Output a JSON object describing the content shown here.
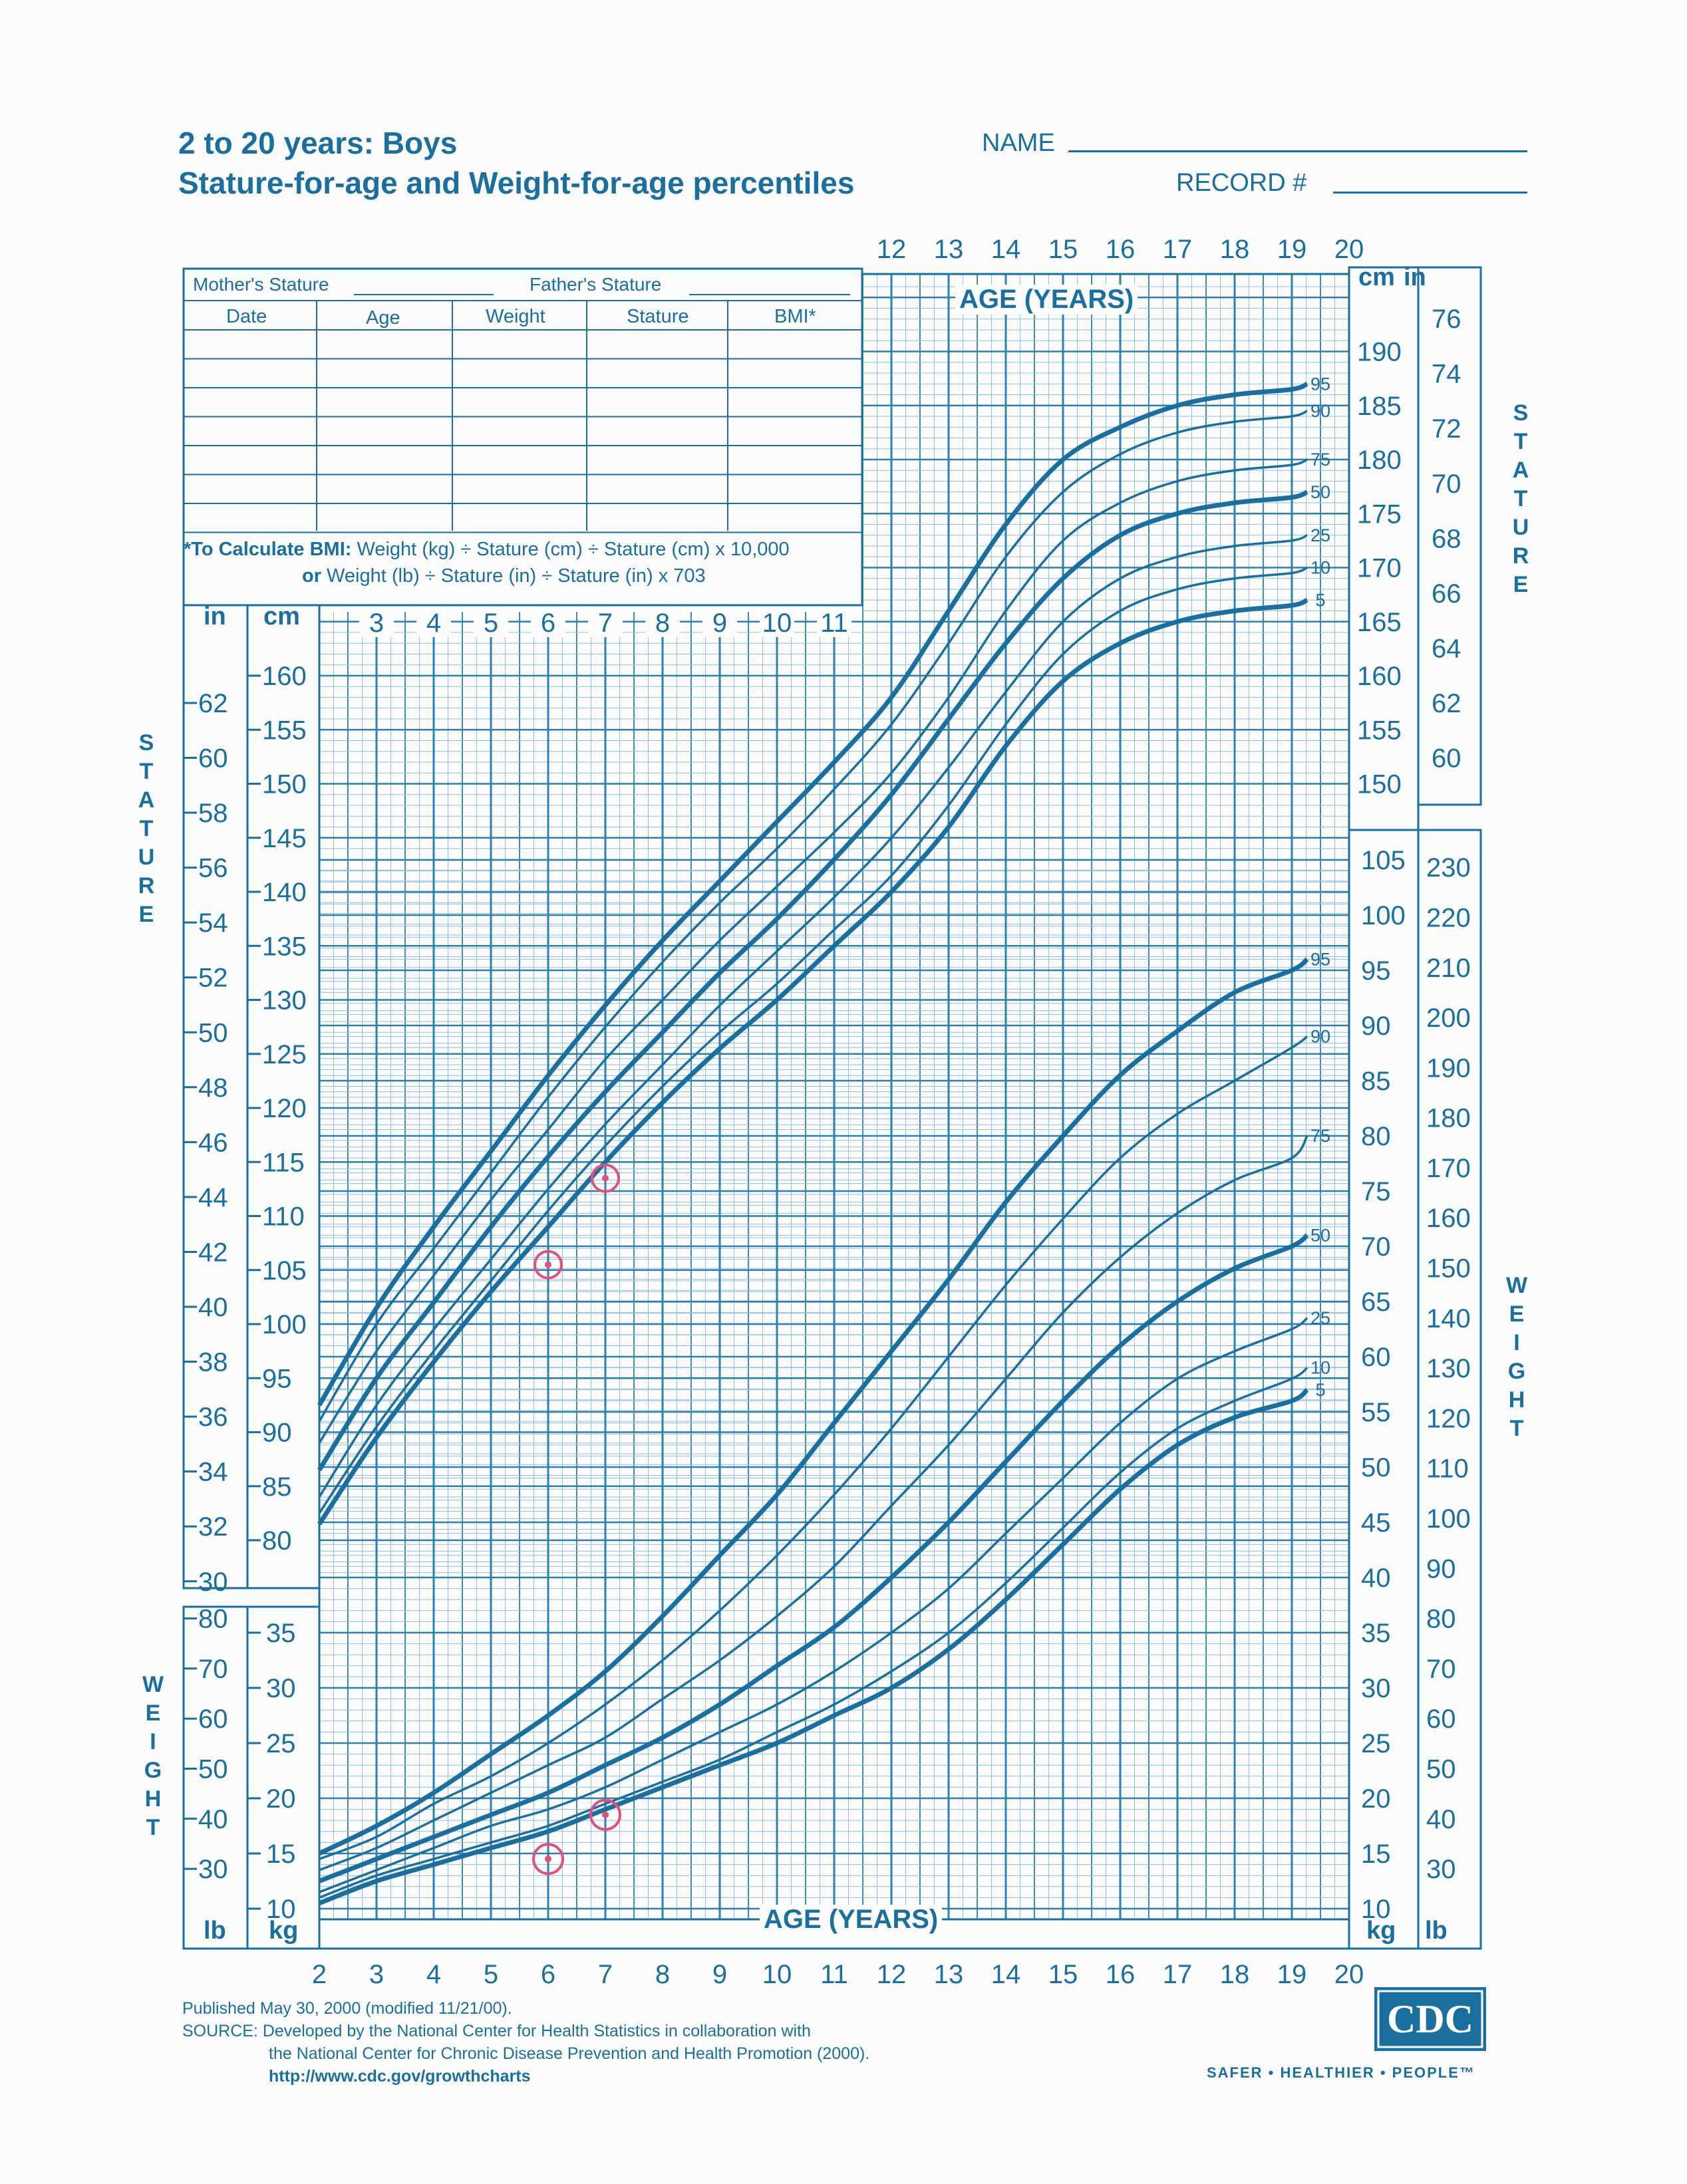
{
  "header": {
    "title_line1": "2 to 20 years: Boys",
    "title_line2": "Stature-for-age and Weight-for-age percentiles",
    "name_label": "NAME",
    "record_label": "RECORD #"
  },
  "form": {
    "mothers_stature": "Mother's Stature",
    "fathers_stature": "Father's Stature",
    "columns": [
      "Date",
      "Age",
      "Weight",
      "Stature",
      "BMI*"
    ],
    "bmi_note_line1_bold": "*To Calculate BMI:",
    "bmi_note_line1": " Weight (kg) ÷ Stature (cm) ÷ Stature (cm) x 10,000",
    "bmi_note_line2_bold": "or",
    "bmi_note_line2": " Weight (lb) ÷ Stature (in) ÷ Stature (in) x 703"
  },
  "axis_labels": {
    "age_years": "AGE (YEARS)",
    "stature": "STATURE",
    "weight": "WEIGHT",
    "cm": "cm",
    "in": "in",
    "kg": "kg",
    "lb": "lb"
  },
  "footer": {
    "published": "Published May 30, 2000 (modified 11/21/00).",
    "source_line1": "SOURCE: Developed by the National Center for Health Statistics in collaboration with",
    "source_line2": "the National Center for Chronic Disease Prevention and Health Promotion (2000).",
    "url": "http://www.cdc.gov/growthcharts",
    "logo_text": "CDC",
    "tagline": "SAFER • HEALTHIER • PEOPLE™"
  },
  "colors": {
    "ink": "#1a6f9f",
    "grid": "#2d7fb0",
    "minor_grid": "#8fbfdc",
    "marker": "#e0507a"
  },
  "chart_data": {
    "type": "line",
    "x_ticks": [
      2,
      3,
      4,
      5,
      6,
      7,
      8,
      9,
      10,
      11,
      12,
      13,
      14,
      15,
      16,
      17,
      18,
      19,
      20
    ],
    "stature_cm_ticks": [
      80,
      85,
      90,
      95,
      100,
      105,
      110,
      115,
      120,
      125,
      130,
      135,
      140,
      145,
      150,
      155,
      160,
      165,
      170,
      175,
      180,
      185,
      190
    ],
    "stature_in_ticks": [
      30,
      32,
      34,
      36,
      38,
      40,
      42,
      44,
      46,
      48,
      50,
      52,
      54,
      56,
      58,
      60,
      62,
      64,
      66,
      68,
      70,
      72,
      74,
      76
    ],
    "weight_kg_ticks": [
      10,
      15,
      20,
      25,
      30,
      35,
      40,
      45,
      50,
      55,
      60,
      65,
      70,
      75,
      80,
      85,
      90,
      95,
      100,
      105
    ],
    "weight_lb_ticks": [
      30,
      40,
      50,
      60,
      70,
      80,
      90,
      100,
      110,
      120,
      130,
      140,
      150,
      160,
      170,
      180,
      190,
      200,
      210,
      220,
      230
    ],
    "x_range": [
      2,
      20
    ],
    "stature_range_cm": [
      77,
      197
    ],
    "weight_range_kg": [
      8,
      105
    ],
    "stature_series": [
      {
        "name": "95",
        "x": [
          2,
          3,
          4,
          5,
          6,
          7,
          8,
          9,
          10,
          11,
          12,
          13,
          14,
          15,
          16,
          17,
          18,
          19,
          20
        ],
        "y": [
          92.5,
          101.5,
          109,
          116,
          123,
          129.5,
          135.5,
          141,
          146.5,
          152,
          158,
          166,
          174,
          180,
          183,
          185,
          186,
          186.5,
          187
        ]
      },
      {
        "name": "90",
        "x": [
          2,
          3,
          4,
          5,
          6,
          7,
          8,
          9,
          10,
          11,
          12,
          13,
          14,
          15,
          16,
          17,
          18,
          19,
          20
        ],
        "y": [
          91,
          100,
          107,
          114,
          121,
          127.5,
          133.5,
          139,
          144,
          149.5,
          155.5,
          163,
          171,
          177,
          180.5,
          182.5,
          183.5,
          184,
          184.5
        ]
      },
      {
        "name": "75",
        "x": [
          2,
          3,
          4,
          5,
          6,
          7,
          8,
          9,
          10,
          11,
          12,
          13,
          14,
          15,
          16,
          17,
          18,
          19,
          20
        ],
        "y": [
          89,
          97.5,
          104.5,
          111.5,
          118,
          124.5,
          130,
          135.5,
          140.5,
          145.5,
          151,
          158,
          166,
          172.5,
          176,
          178,
          179,
          179.5,
          180
        ]
      },
      {
        "name": "50",
        "x": [
          2,
          3,
          4,
          5,
          6,
          7,
          8,
          9,
          10,
          11,
          12,
          13,
          14,
          15,
          16,
          17,
          18,
          19,
          20
        ],
        "y": [
          86.5,
          95,
          102,
          109,
          115.5,
          121.5,
          127,
          132.5,
          137.5,
          143,
          149,
          156,
          163,
          169,
          173,
          175,
          176,
          176.5,
          177
        ]
      },
      {
        "name": "25",
        "x": [
          2,
          3,
          4,
          5,
          6,
          7,
          8,
          9,
          10,
          11,
          12,
          13,
          14,
          15,
          16,
          17,
          18,
          19,
          20
        ],
        "y": [
          84,
          92.5,
          99.5,
          106,
          112.5,
          118.5,
          124,
          129.5,
          134.5,
          139.5,
          145,
          151.5,
          158.5,
          165,
          169,
          171,
          172,
          172.5,
          173
        ]
      },
      {
        "name": "10",
        "x": [
          2,
          3,
          4,
          5,
          6,
          7,
          8,
          9,
          10,
          11,
          12,
          13,
          14,
          15,
          16,
          17,
          18,
          19,
          20
        ],
        "y": [
          82.5,
          90.5,
          97.5,
          104,
          110.5,
          116.5,
          122,
          127,
          131.5,
          136.5,
          141.5,
          148,
          155.5,
          162,
          166,
          168,
          169,
          169.5,
          170
        ]
      },
      {
        "name": "5",
        "x": [
          2,
          3,
          4,
          5,
          6,
          7,
          8,
          9,
          10,
          11,
          12,
          13,
          14,
          15,
          16,
          17,
          18,
          19,
          20
        ],
        "y": [
          81.5,
          89.5,
          96.5,
          103,
          109,
          115,
          120.5,
          125.5,
          130,
          135,
          140,
          146,
          153.5,
          159.5,
          163,
          165,
          166,
          166.5,
          167
        ]
      }
    ],
    "weight_series": [
      {
        "name": "95",
        "x": [
          2,
          3,
          4,
          5,
          6,
          7,
          8,
          9,
          10,
          11,
          12,
          13,
          14,
          15,
          16,
          17,
          18,
          19,
          20
        ],
        "y": [
          15,
          17.5,
          20.5,
          24,
          27.5,
          31.5,
          36.5,
          42,
          47.5,
          54,
          60.5,
          67,
          74,
          80,
          85.5,
          89.5,
          93,
          95,
          96
        ]
      },
      {
        "name": "90",
        "x": [
          2,
          3,
          4,
          5,
          6,
          7,
          8,
          9,
          10,
          11,
          12,
          13,
          14,
          15,
          16,
          17,
          18,
          19,
          20
        ],
        "y": [
          14.5,
          16.5,
          19.5,
          22,
          25,
          28.5,
          32.5,
          37,
          42,
          47.5,
          53.5,
          60,
          66.5,
          72.5,
          78,
          82,
          85,
          88,
          89
        ]
      },
      {
        "name": "75",
        "x": [
          2,
          3,
          4,
          5,
          6,
          7,
          8,
          9,
          10,
          11,
          12,
          13,
          14,
          15,
          16,
          17,
          18,
          19,
          20
        ],
        "y": [
          13.5,
          15.5,
          18,
          20.5,
          23,
          25.5,
          29,
          32.5,
          36.5,
          41,
          46.5,
          52,
          58,
          64,
          69,
          73,
          76,
          78,
          80
        ]
      },
      {
        "name": "50",
        "x": [
          2,
          3,
          4,
          5,
          6,
          7,
          8,
          9,
          10,
          11,
          12,
          13,
          14,
          15,
          16,
          17,
          18,
          19,
          20
        ],
        "y": [
          12.5,
          14.5,
          16.5,
          18.5,
          20.5,
          23,
          25.5,
          28.5,
          32,
          35.5,
          40,
          45,
          50.5,
          56,
          61,
          65,
          68,
          70,
          71
        ]
      },
      {
        "name": "25",
        "x": [
          2,
          3,
          4,
          5,
          6,
          7,
          8,
          9,
          10,
          11,
          12,
          13,
          14,
          15,
          16,
          17,
          18,
          19,
          20
        ],
        "y": [
          11.5,
          13.5,
          15.5,
          17.5,
          19,
          21,
          23.5,
          26,
          28.5,
          31.5,
          35,
          39,
          44,
          49,
          54,
          58,
          60.5,
          62.5,
          63.5
        ]
      },
      {
        "name": "10",
        "x": [
          2,
          3,
          4,
          5,
          6,
          7,
          8,
          9,
          10,
          11,
          12,
          13,
          14,
          15,
          16,
          17,
          18,
          19,
          20
        ],
        "y": [
          11,
          13,
          14.5,
          16,
          17.5,
          19.5,
          21.5,
          23.5,
          26,
          28.5,
          31.5,
          35,
          39.5,
          44.5,
          49.5,
          53.5,
          56,
          58,
          59
        ]
      },
      {
        "name": "5",
        "x": [
          2,
          3,
          4,
          5,
          6,
          7,
          8,
          9,
          10,
          11,
          12,
          13,
          14,
          15,
          16,
          17,
          18,
          19,
          20
        ],
        "y": [
          10.5,
          12.5,
          14,
          15.5,
          17,
          19,
          21,
          23,
          25,
          27.5,
          30,
          33.5,
          38,
          43,
          48,
          52,
          54.5,
          56,
          57
        ]
      }
    ],
    "plotted_points": {
      "stature": [
        {
          "x": 6,
          "y": 105.5
        },
        {
          "x": 7,
          "y": 113.5
        }
      ],
      "weight": [
        {
          "x": 6,
          "y": 14.5
        },
        {
          "x": 7,
          "y": 18.5
        }
      ]
    }
  }
}
